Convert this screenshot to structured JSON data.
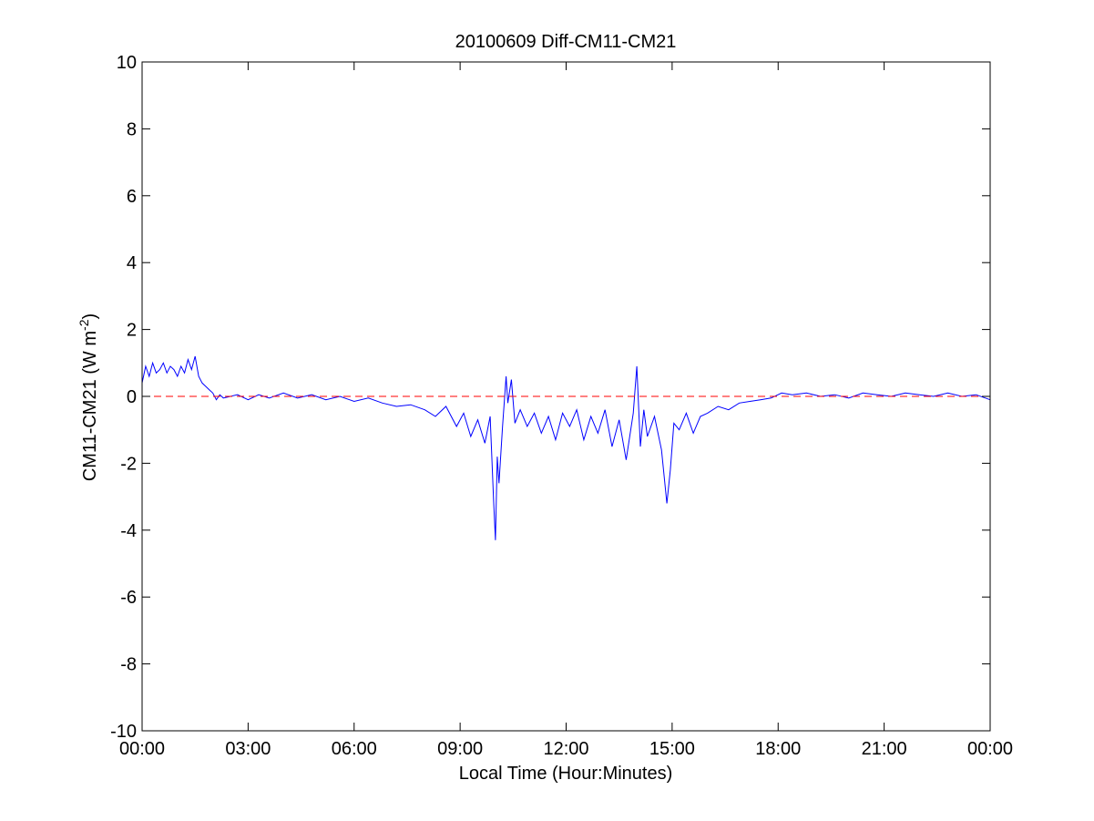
{
  "chart_data": {
    "type": "line",
    "title": "20100609 Diff-CM11-CM21",
    "xlabel": "Local Time (Hour:Minutes)",
    "ylabel_main": "CM11-CM21 (W m",
    "ylabel_sup": "-2",
    "ylabel_close": ")",
    "xlim_hours": [
      0,
      24
    ],
    "ylim": [
      -10,
      10
    ],
    "x_ticks": [
      {
        "hour": 0,
        "label": "00:00"
      },
      {
        "hour": 3,
        "label": "03:00"
      },
      {
        "hour": 6,
        "label": "06:00"
      },
      {
        "hour": 9,
        "label": "09:00"
      },
      {
        "hour": 12,
        "label": "12:00"
      },
      {
        "hour": 15,
        "label": "15:00"
      },
      {
        "hour": 18,
        "label": "18:00"
      },
      {
        "hour": 21,
        "label": "21:00"
      },
      {
        "hour": 24,
        "label": "00:00"
      }
    ],
    "y_ticks": [
      {
        "value": 10,
        "label": "10"
      },
      {
        "value": 8,
        "label": "8"
      },
      {
        "value": 6,
        "label": "6"
      },
      {
        "value": 4,
        "label": "4"
      },
      {
        "value": 2,
        "label": "2"
      },
      {
        "value": 0,
        "label": "0"
      },
      {
        "value": -2,
        "label": "-2"
      },
      {
        "value": -4,
        "label": "-4"
      },
      {
        "value": -6,
        "label": "-6"
      },
      {
        "value": -8,
        "label": "-8"
      },
      {
        "value": -10,
        "label": "-10"
      }
    ],
    "grid": false,
    "series": [
      {
        "color": "#0000ff",
        "line_style": "solid",
        "x_hours": [
          0,
          0.1,
          0.2,
          0.3,
          0.4,
          0.5,
          0.6,
          0.7,
          0.8,
          0.9,
          1.0,
          1.1,
          1.2,
          1.3,
          1.4,
          1.5,
          1.6,
          1.7,
          1.8,
          1.9,
          2.0,
          2.1,
          2.2,
          2.3,
          2.5,
          2.7,
          3.0,
          3.3,
          3.6,
          4.0,
          4.4,
          4.8,
          5.2,
          5.6,
          6.0,
          6.4,
          6.8,
          7.2,
          7.6,
          8.0,
          8.3,
          8.6,
          8.9,
          9.1,
          9.3,
          9.5,
          9.7,
          9.85,
          9.95,
          10.0,
          10.05,
          10.1,
          10.2,
          10.3,
          10.35,
          10.45,
          10.55,
          10.7,
          10.9,
          11.1,
          11.3,
          11.5,
          11.7,
          11.9,
          12.1,
          12.3,
          12.5,
          12.7,
          12.9,
          13.1,
          13.3,
          13.5,
          13.7,
          13.9,
          14.0,
          14.1,
          14.2,
          14.3,
          14.5,
          14.7,
          14.85,
          14.95,
          15.05,
          15.2,
          15.4,
          15.6,
          15.8,
          16.0,
          16.3,
          16.6,
          16.9,
          17.2,
          17.5,
          17.8,
          18.1,
          18.4,
          18.8,
          19.2,
          19.6,
          20.0,
          20.4,
          20.8,
          21.2,
          21.6,
          22.0,
          22.4,
          22.8,
          23.2,
          23.6,
          24.0
        ],
        "values": [
          0.4,
          0.9,
          0.6,
          1.0,
          0.7,
          0.8,
          1.0,
          0.7,
          0.9,
          0.8,
          0.6,
          0.9,
          0.7,
          1.1,
          0.8,
          1.2,
          0.6,
          0.4,
          0.3,
          0.2,
          0.1,
          -0.1,
          0.05,
          -0.05,
          0.0,
          0.05,
          -0.1,
          0.05,
          -0.05,
          0.1,
          -0.05,
          0.05,
          -0.1,
          0.0,
          -0.15,
          -0.05,
          -0.2,
          -0.3,
          -0.25,
          -0.4,
          -0.6,
          -0.3,
          -0.9,
          -0.5,
          -1.2,
          -0.7,
          -1.4,
          -0.6,
          -3.2,
          -4.3,
          -1.8,
          -2.6,
          -0.9,
          0.6,
          -0.2,
          0.5,
          -0.8,
          -0.4,
          -0.9,
          -0.5,
          -1.1,
          -0.6,
          -1.3,
          -0.5,
          -0.9,
          -0.4,
          -1.3,
          -0.6,
          -1.1,
          -0.4,
          -1.5,
          -0.7,
          -1.9,
          -0.5,
          0.9,
          -1.5,
          -0.4,
          -1.2,
          -0.6,
          -1.6,
          -3.2,
          -2.2,
          -0.8,
          -1.0,
          -0.5,
          -1.1,
          -0.6,
          -0.5,
          -0.3,
          -0.4,
          -0.2,
          -0.15,
          -0.1,
          -0.05,
          0.1,
          0.05,
          0.1,
          0.0,
          0.05,
          -0.05,
          0.1,
          0.05,
          0.0,
          0.1,
          0.05,
          0.0,
          0.1,
          0.0,
          0.05,
          -0.1
        ]
      },
      {
        "color": "#ff0000",
        "line_style": "dashed",
        "x_hours": [
          0,
          24
        ],
        "values": [
          0,
          0
        ]
      }
    ]
  }
}
